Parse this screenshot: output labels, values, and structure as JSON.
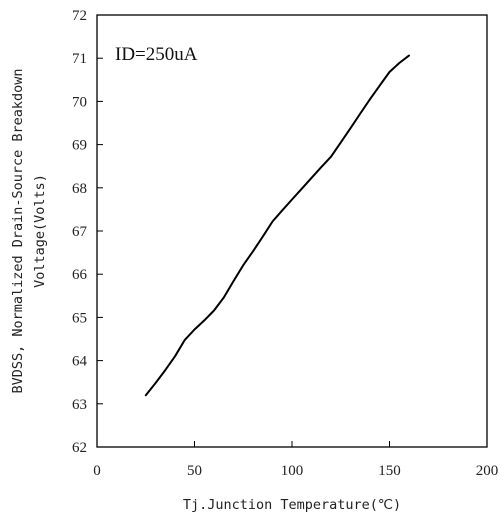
{
  "chart_data": {
    "type": "line",
    "title": "",
    "xlabel": "Tj.Junction Temperature(℃)",
    "ylabel_lines": [
      "BVDSS, Normalized Drain-Source Breakdown",
      "Voltage(Volts)"
    ],
    "xlim": [
      0,
      200
    ],
    "ylim": [
      62,
      72
    ],
    "x_ticks": [
      0,
      50,
      100,
      150,
      200
    ],
    "y_ticks": [
      62,
      63,
      64,
      65,
      66,
      67,
      68,
      69,
      70,
      71,
      72
    ],
    "grid": false,
    "legend": "none",
    "annotation": "ID=250uA",
    "series": [
      {
        "color": "#000000",
        "x": [
          25,
          30,
          35,
          40,
          45,
          50,
          55,
          60,
          65,
          70,
          75,
          80,
          85,
          90,
          95,
          100,
          105,
          110,
          115,
          120,
          125,
          130,
          135,
          140,
          145,
          150,
          155,
          160
        ],
        "y": [
          63.2,
          63.48,
          63.78,
          64.1,
          64.48,
          64.72,
          64.93,
          65.16,
          65.46,
          65.84,
          66.21,
          66.53,
          66.87,
          67.22,
          67.48,
          67.73,
          67.98,
          68.23,
          68.48,
          68.72,
          69.05,
          69.38,
          69.72,
          70.05,
          70.37,
          70.68,
          70.89,
          71.06
        ]
      }
    ]
  }
}
